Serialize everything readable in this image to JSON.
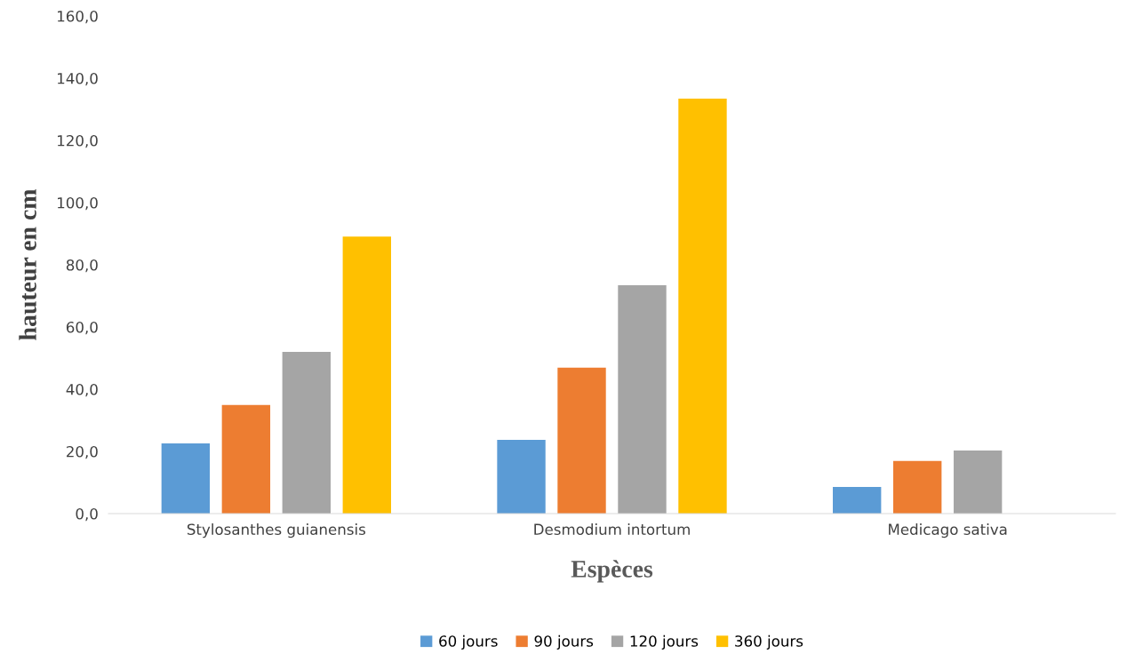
{
  "chart_data": {
    "type": "bar",
    "xlabel": "Espèces",
    "ylabel": "hauteur en cm",
    "categories": [
      "Stylosanthes guianensis",
      "Desmodium intortum",
      "Medicago sativa"
    ],
    "series": [
      {
        "name": "60 jours",
        "color": "#5b9bd5",
        "values": [
          22.6,
          23.7,
          8.6
        ]
      },
      {
        "name": "90 jours",
        "color": "#ed7d31",
        "values": [
          34.9,
          46.9,
          16.9
        ]
      },
      {
        "name": "120 jours",
        "color": "#a5a5a5",
        "values": [
          52.0,
          73.4,
          20.3
        ]
      },
      {
        "name": "360 jours",
        "color": "#ffc000",
        "values": [
          89.1,
          133.4,
          null
        ]
      }
    ],
    "ylim": [
      0,
      160
    ],
    "yticks": [
      {
        "value": 0,
        "label": "0,0"
      },
      {
        "value": 20,
        "label": "20,0"
      },
      {
        "value": 40,
        "label": "40,0"
      },
      {
        "value": 60,
        "label": "60,0"
      },
      {
        "value": 80,
        "label": "80,0"
      },
      {
        "value": 100,
        "label": "100,0"
      },
      {
        "value": 120,
        "label": "120,0"
      },
      {
        "value": 140,
        "label": "140,0"
      },
      {
        "value": 160,
        "label": "160,0"
      }
    ],
    "grid": false,
    "legend": "bottom"
  }
}
